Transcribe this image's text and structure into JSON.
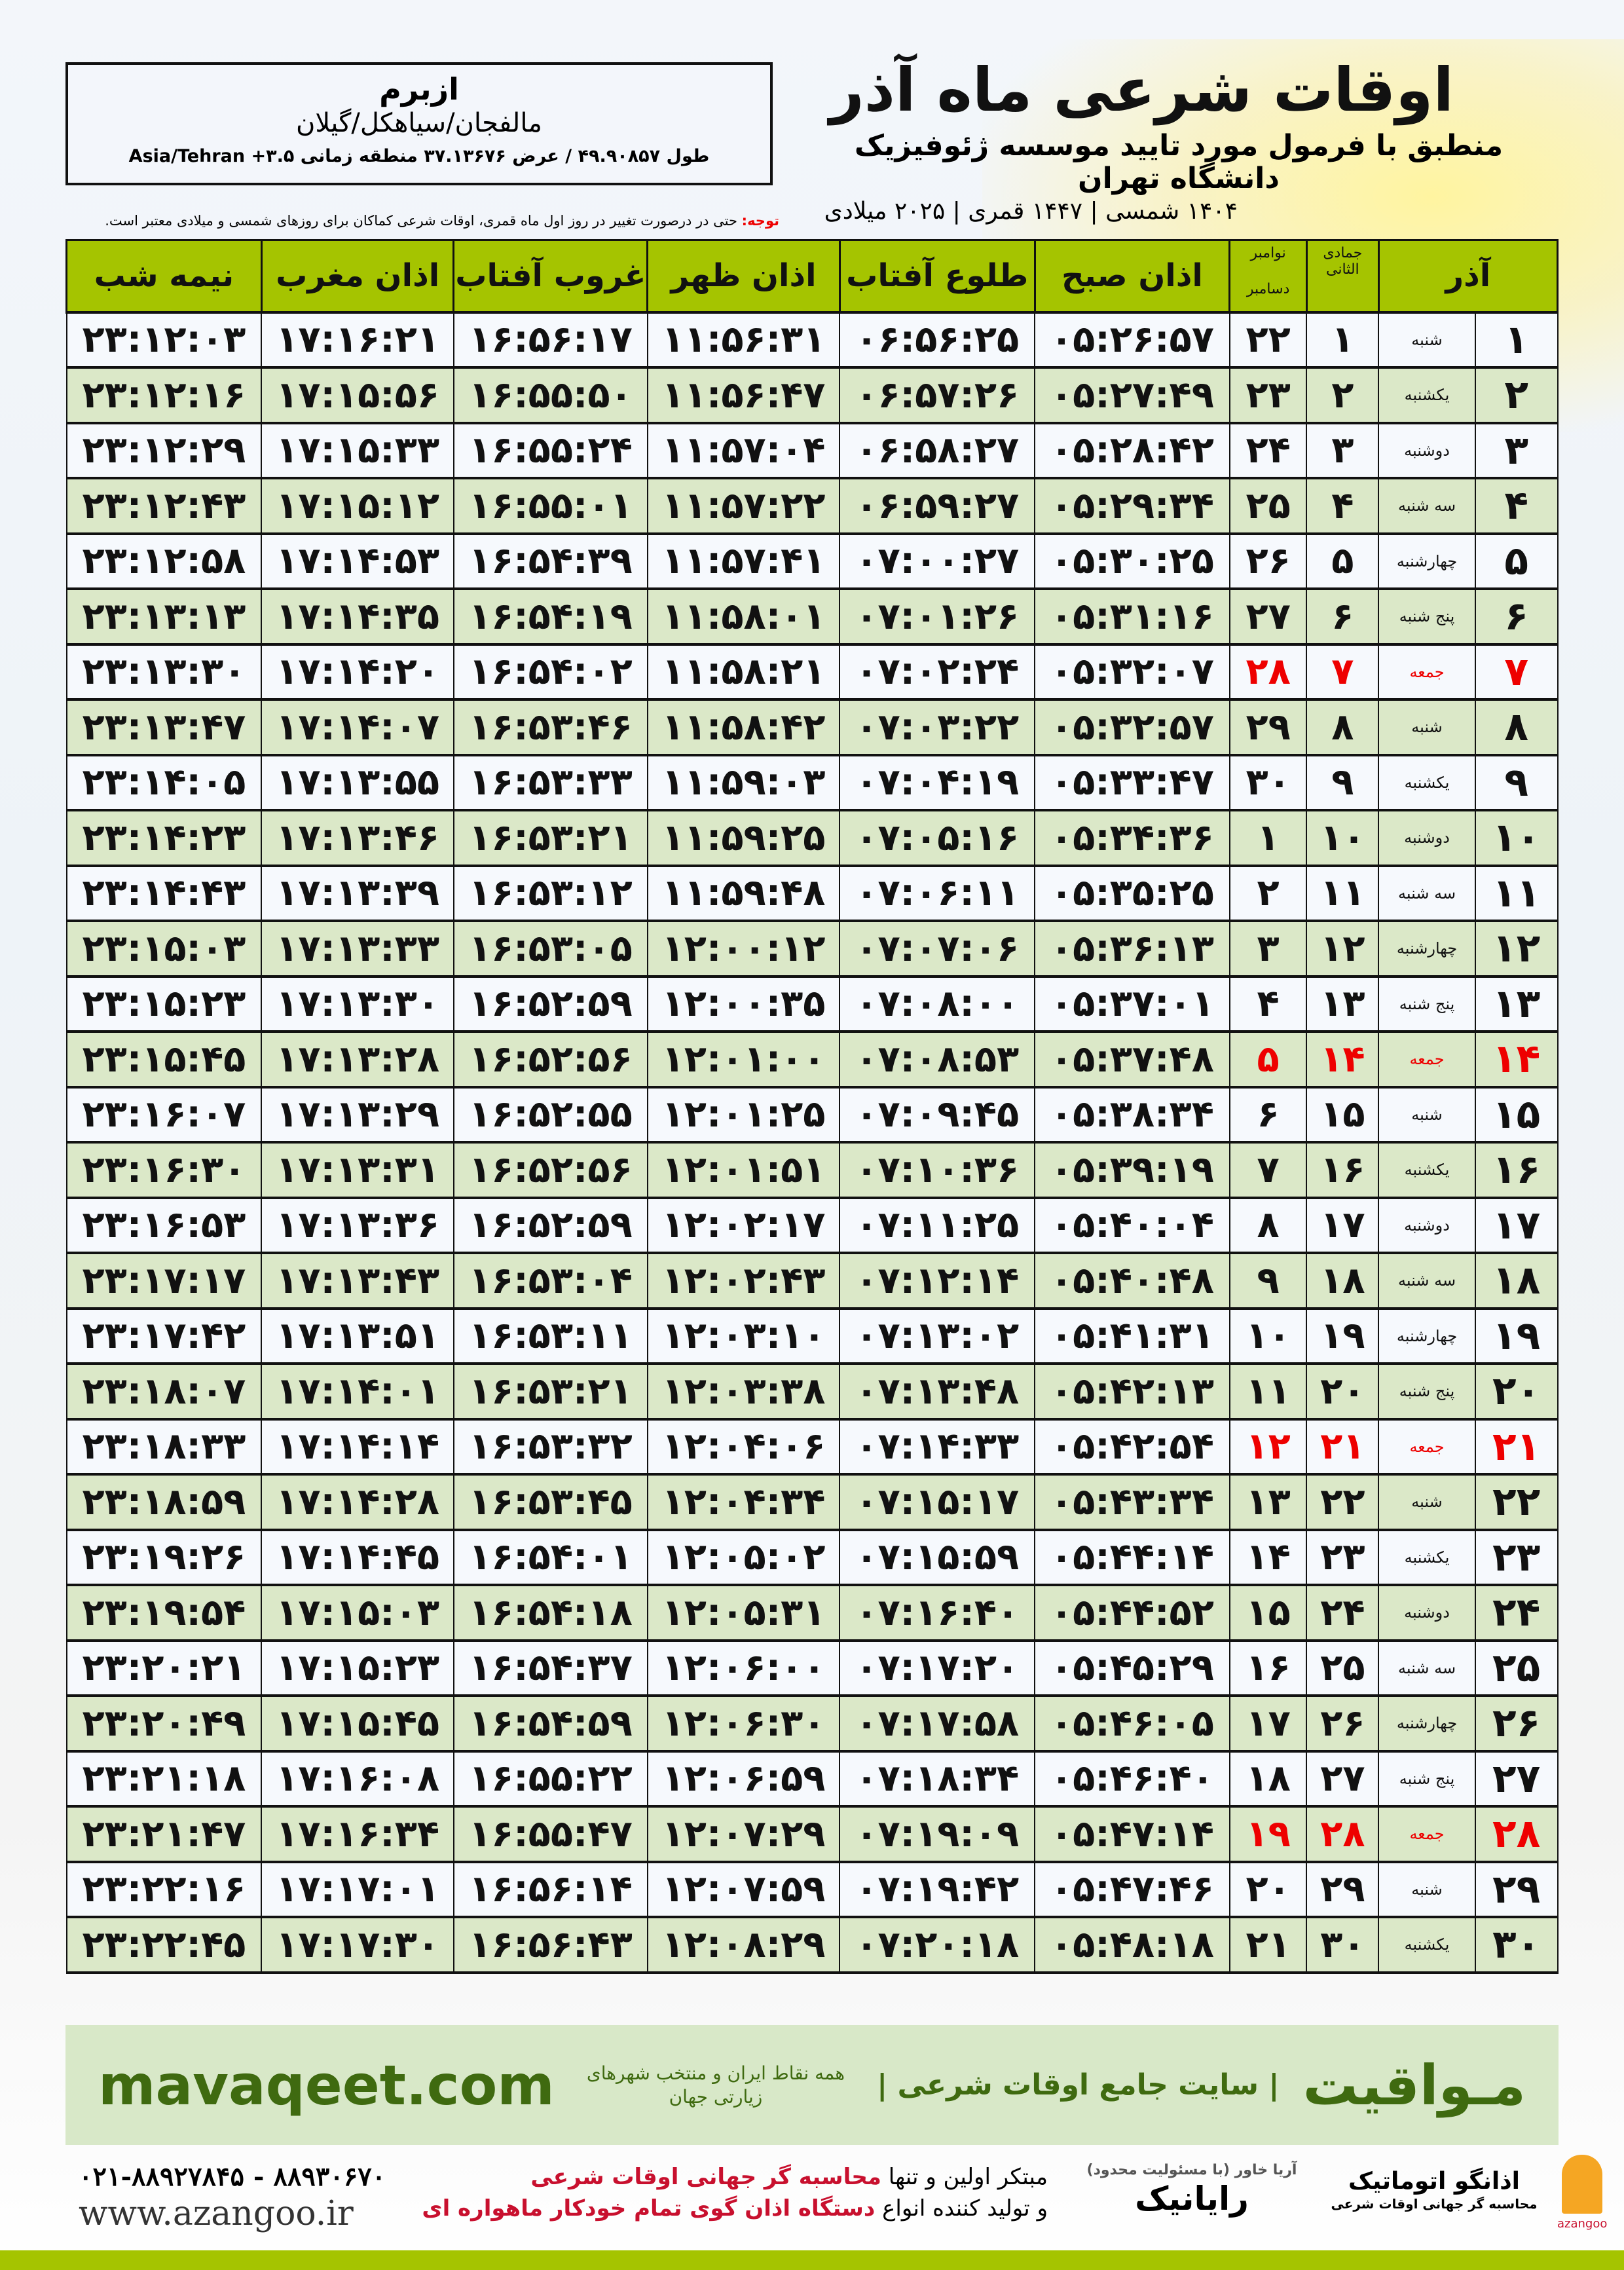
{
  "header": {
    "title": "اوقات شرعی ماه آذر",
    "subtitle": "منطبق با فرمول مورد تایید موسسه ژئوفیزیک دانشگاه تهران",
    "years": "۱۴۰۴ شمسی | ۱۴۴۷ قمری | ۲۰۲۵ میلادی"
  },
  "location": {
    "name": "ازبرم",
    "path": "مالفجان/سیاهکل/گیلان",
    "coords": "طول ۴۹.۹۰۸۵۷ / عرض ۳۷.۱۳۶۷۶ منطقه زمانی ۳.۵+ Asia/Tehran"
  },
  "note": {
    "label": "توجه:",
    "text": " حتی در درصورت تغییر در روز اول ماه قمری، اوقات شرعی کماکان برای روزهای شمسی و میلادی معتبر است."
  },
  "table": {
    "headers": {
      "day": "آذر",
      "hijri": "جمادی الثانی",
      "greg_top": "نوامبر",
      "greg_bottom": "دسامبر",
      "sobh": "اذان صبح",
      "tolu": "طلوع آفتاب",
      "zohr": "اذان ظهر",
      "ghurub": "غروب آفتاب",
      "maghrib": "اذان مغرب",
      "nimeh": "نیمه شب"
    },
    "rows": [
      [
        "۱",
        "شنبه",
        "۱",
        "۲۲",
        "۰۵:۲۶:۵۷",
        "۰۶:۵۶:۲۵",
        "۱۱:۵۶:۳۱",
        "۱۶:۵۶:۱۷",
        "۱۷:۱۶:۲۱",
        "۲۳:۱۲:۰۳"
      ],
      [
        "۲",
        "یکشنبه",
        "۲",
        "۲۳",
        "۰۵:۲۷:۴۹",
        "۰۶:۵۷:۲۶",
        "۱۱:۵۶:۴۷",
        "۱۶:۵۵:۵۰",
        "۱۷:۱۵:۵۶",
        "۲۳:۱۲:۱۶"
      ],
      [
        "۳",
        "دوشنبه",
        "۳",
        "۲۴",
        "۰۵:۲۸:۴۲",
        "۰۶:۵۸:۲۷",
        "۱۱:۵۷:۰۴",
        "۱۶:۵۵:۲۴",
        "۱۷:۱۵:۳۳",
        "۲۳:۱۲:۲۹"
      ],
      [
        "۴",
        "سه شنبه",
        "۴",
        "۲۵",
        "۰۵:۲۹:۳۴",
        "۰۶:۵۹:۲۷",
        "۱۱:۵۷:۲۲",
        "۱۶:۵۵:۰۱",
        "۱۷:۱۵:۱۲",
        "۲۳:۱۲:۴۳"
      ],
      [
        "۵",
        "چهارشنبه",
        "۵",
        "۲۶",
        "۰۵:۳۰:۲۵",
        "۰۷:۰۰:۲۷",
        "۱۱:۵۷:۴۱",
        "۱۶:۵۴:۳۹",
        "۱۷:۱۴:۵۳",
        "۲۳:۱۲:۵۸"
      ],
      [
        "۶",
        "پنج شنبه",
        "۶",
        "۲۷",
        "۰۵:۳۱:۱۶",
        "۰۷:۰۱:۲۶",
        "۱۱:۵۸:۰۱",
        "۱۶:۵۴:۱۹",
        "۱۷:۱۴:۳۵",
        "۲۳:۱۳:۱۳"
      ],
      [
        "۷",
        "جمعه",
        "۷",
        "۲۸",
        "۰۵:۳۲:۰۷",
        "۰۷:۰۲:۲۴",
        "۱۱:۵۸:۲۱",
        "۱۶:۵۴:۰۲",
        "۱۷:۱۴:۲۰",
        "۲۳:۱۳:۳۰"
      ],
      [
        "۸",
        "شنبه",
        "۸",
        "۲۹",
        "۰۵:۳۲:۵۷",
        "۰۷:۰۳:۲۲",
        "۱۱:۵۸:۴۲",
        "۱۶:۵۳:۴۶",
        "۱۷:۱۴:۰۷",
        "۲۳:۱۳:۴۷"
      ],
      [
        "۹",
        "یکشنبه",
        "۹",
        "۳۰",
        "۰۵:۳۳:۴۷",
        "۰۷:۰۴:۱۹",
        "۱۱:۵۹:۰۳",
        "۱۶:۵۳:۳۳",
        "۱۷:۱۳:۵۵",
        "۲۳:۱۴:۰۵"
      ],
      [
        "۱۰",
        "دوشنبه",
        "۱۰",
        "۱",
        "۰۵:۳۴:۳۶",
        "۰۷:۰۵:۱۶",
        "۱۱:۵۹:۲۵",
        "۱۶:۵۳:۲۱",
        "۱۷:۱۳:۴۶",
        "۲۳:۱۴:۲۳"
      ],
      [
        "۱۱",
        "سه شنبه",
        "۱۱",
        "۲",
        "۰۵:۳۵:۲۵",
        "۰۷:۰۶:۱۱",
        "۱۱:۵۹:۴۸",
        "۱۶:۵۳:۱۲",
        "۱۷:۱۳:۳۹",
        "۲۳:۱۴:۴۳"
      ],
      [
        "۱۲",
        "چهارشنبه",
        "۱۲",
        "۳",
        "۰۵:۳۶:۱۳",
        "۰۷:۰۷:۰۶",
        "۱۲:۰۰:۱۲",
        "۱۶:۵۳:۰۵",
        "۱۷:۱۳:۳۳",
        "۲۳:۱۵:۰۳"
      ],
      [
        "۱۳",
        "پنج شنبه",
        "۱۳",
        "۴",
        "۰۵:۳۷:۰۱",
        "۰۷:۰۸:۰۰",
        "۱۲:۰۰:۳۵",
        "۱۶:۵۲:۵۹",
        "۱۷:۱۳:۳۰",
        "۲۳:۱۵:۲۳"
      ],
      [
        "۱۴",
        "جمعه",
        "۱۴",
        "۵",
        "۰۵:۳۷:۴۸",
        "۰۷:۰۸:۵۳",
        "۱۲:۰۱:۰۰",
        "۱۶:۵۲:۵۶",
        "۱۷:۱۳:۲۸",
        "۲۳:۱۵:۴۵"
      ],
      [
        "۱۵",
        "شنبه",
        "۱۵",
        "۶",
        "۰۵:۳۸:۳۴",
        "۰۷:۰۹:۴۵",
        "۱۲:۰۱:۲۵",
        "۱۶:۵۲:۵۵",
        "۱۷:۱۳:۲۹",
        "۲۳:۱۶:۰۷"
      ],
      [
        "۱۶",
        "یکشنبه",
        "۱۶",
        "۷",
        "۰۵:۳۹:۱۹",
        "۰۷:۱۰:۳۶",
        "۱۲:۰۱:۵۱",
        "۱۶:۵۲:۵۶",
        "۱۷:۱۳:۳۱",
        "۲۳:۱۶:۳۰"
      ],
      [
        "۱۷",
        "دوشنبه",
        "۱۷",
        "۸",
        "۰۵:۴۰:۰۴",
        "۰۷:۱۱:۲۵",
        "۱۲:۰۲:۱۷",
        "۱۶:۵۲:۵۹",
        "۱۷:۱۳:۳۶",
        "۲۳:۱۶:۵۳"
      ],
      [
        "۱۸",
        "سه شنبه",
        "۱۸",
        "۹",
        "۰۵:۴۰:۴۸",
        "۰۷:۱۲:۱۴",
        "۱۲:۰۲:۴۳",
        "۱۶:۵۳:۰۴",
        "۱۷:۱۳:۴۳",
        "۲۳:۱۷:۱۷"
      ],
      [
        "۱۹",
        "چهارشنبه",
        "۱۹",
        "۱۰",
        "۰۵:۴۱:۳۱",
        "۰۷:۱۳:۰۲",
        "۱۲:۰۳:۱۰",
        "۱۶:۵۳:۱۱",
        "۱۷:۱۳:۵۱",
        "۲۳:۱۷:۴۲"
      ],
      [
        "۲۰",
        "پنج شنبه",
        "۲۰",
        "۱۱",
        "۰۵:۴۲:۱۳",
        "۰۷:۱۳:۴۸",
        "۱۲:۰۳:۳۸",
        "۱۶:۵۳:۲۱",
        "۱۷:۱۴:۰۱",
        "۲۳:۱۸:۰۷"
      ],
      [
        "۲۱",
        "جمعه",
        "۲۱",
        "۱۲",
        "۰۵:۴۲:۵۴",
        "۰۷:۱۴:۳۳",
        "۱۲:۰۴:۰۶",
        "۱۶:۵۳:۳۲",
        "۱۷:۱۴:۱۴",
        "۲۳:۱۸:۳۳"
      ],
      [
        "۲۲",
        "شنبه",
        "۲۲",
        "۱۳",
        "۰۵:۴۳:۳۴",
        "۰۷:۱۵:۱۷",
        "۱۲:۰۴:۳۴",
        "۱۶:۵۳:۴۵",
        "۱۷:۱۴:۲۸",
        "۲۳:۱۸:۵۹"
      ],
      [
        "۲۳",
        "یکشنبه",
        "۲۳",
        "۱۴",
        "۰۵:۴۴:۱۴",
        "۰۷:۱۵:۵۹",
        "۱۲:۰۵:۰۲",
        "۱۶:۵۴:۰۱",
        "۱۷:۱۴:۴۵",
        "۲۳:۱۹:۲۶"
      ],
      [
        "۲۴",
        "دوشنبه",
        "۲۴",
        "۱۵",
        "۰۵:۴۴:۵۲",
        "۰۷:۱۶:۴۰",
        "۱۲:۰۵:۳۱",
        "۱۶:۵۴:۱۸",
        "۱۷:۱۵:۰۳",
        "۲۳:۱۹:۵۴"
      ],
      [
        "۲۵",
        "سه شنبه",
        "۲۵",
        "۱۶",
        "۰۵:۴۵:۲۹",
        "۰۷:۱۷:۲۰",
        "۱۲:۰۶:۰۰",
        "۱۶:۵۴:۳۷",
        "۱۷:۱۵:۲۳",
        "۲۳:۲۰:۲۱"
      ],
      [
        "۲۶",
        "چهارشنبه",
        "۲۶",
        "۱۷",
        "۰۵:۴۶:۰۵",
        "۰۷:۱۷:۵۸",
        "۱۲:۰۶:۳۰",
        "۱۶:۵۴:۵۹",
        "۱۷:۱۵:۴۵",
        "۲۳:۲۰:۴۹"
      ],
      [
        "۲۷",
        "پنج شنبه",
        "۲۷",
        "۱۸",
        "۰۵:۴۶:۴۰",
        "۰۷:۱۸:۳۴",
        "۱۲:۰۶:۵۹",
        "۱۶:۵۵:۲۲",
        "۱۷:۱۶:۰۸",
        "۲۳:۲۱:۱۸"
      ],
      [
        "۲۸",
        "جمعه",
        "۲۸",
        "۱۹",
        "۰۵:۴۷:۱۴",
        "۰۷:۱۹:۰۹",
        "۱۲:۰۷:۲۹",
        "۱۶:۵۵:۴۷",
        "۱۷:۱۶:۳۴",
        "۲۳:۲۱:۴۷"
      ],
      [
        "۲۹",
        "شنبه",
        "۲۹",
        "۲۰",
        "۰۵:۴۷:۴۶",
        "۰۷:۱۹:۴۲",
        "۱۲:۰۷:۵۹",
        "۱۶:۵۶:۱۴",
        "۱۷:۱۷:۰۱",
        "۲۳:۲۲:۱۶"
      ],
      [
        "۳۰",
        "یکشنبه",
        "۳۰",
        "۲۱",
        "۰۵:۴۸:۱۸",
        "۰۷:۲۰:۱۸",
        "۱۲:۰۸:۲۹",
        "۱۶:۵۶:۴۳",
        "۱۷:۱۷:۳۰",
        "۲۳:۲۲:۴۵"
      ]
    ]
  },
  "footer": {
    "brand": "مـواقیت",
    "slogan": "| سایت جامع اوقات شرعی |",
    "slogan2": "همه نقاط ایران و منتخب شهرهای زیارتی جهان",
    "site": "mavaqeet.com",
    "phone": "۰۲۱-۸۸۹۲۷۸۴۵ - ۸۸۹۳۰۶۷۰",
    "www": "www.azangoo.ir",
    "promo1a": "مبتکر اولین و تنها ",
    "promo1b": "محاسبه گر جهانی اوقات شرعی",
    "promo2a": "و تولید کننده انواع ",
    "promo2b": "دستگاه اذان گوی تمام خودکار ماهواره ای",
    "logo_rayanik": "رایانیک",
    "logo_rayanik_small": "آریا خاور (با مسئولیت محدود)",
    "logo_azangoo": "اذانگو اتوماتیک",
    "logo_azangoo_small": "محاسبه گر جهانی اوقات شرعی",
    "logo_azangoo_en": "azangoo"
  },
  "colors": {
    "header_green": "#a5c400",
    "row_green": "#dbe8c8",
    "friday_red": "#e00000",
    "brand_green": "#3f6a10"
  }
}
